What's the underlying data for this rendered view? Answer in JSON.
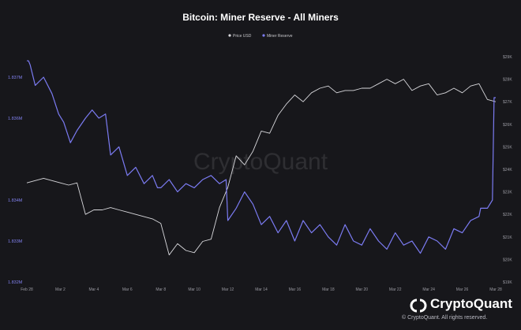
{
  "chart_data": {
    "type": "line",
    "title": "Bitcoin: Miner Reserve - All Miners",
    "legend": {
      "placement": "top-center",
      "entries": [
        "Price USD",
        "Miner Reserve"
      ]
    },
    "watermark": "CryptoQuant",
    "grid": false,
    "x_ticks": [
      "Feb 28",
      "Mar 2",
      "Mar 4",
      "Mar 6",
      "Mar 8",
      "Mar 10",
      "Mar 12",
      "Mar 14",
      "Mar 16",
      "Mar 18",
      "Mar 20",
      "Mar 22",
      "Mar 24",
      "Mar 26",
      "Mar 28"
    ],
    "left_axis": {
      "ticks": [
        "1.832M",
        "1.833M",
        "1.834M",
        "1.836M",
        "1.837M"
      ],
      "ylim": [
        1832000,
        1837500
      ]
    },
    "right_axis": {
      "ticks": [
        "$19K",
        "$20K",
        "$21K",
        "$22K",
        "$23K",
        "$24K",
        "$25K",
        "$26K",
        "$27K",
        "$28K",
        "$29K"
      ],
      "ylim": [
        19000,
        29000
      ]
    },
    "series": [
      {
        "name": "Price USD",
        "axis": "right",
        "color": "#d8d8dc",
        "x": [
          0,
          0.5,
          1,
          1.5,
          2,
          2.5,
          3,
          3.5,
          4,
          4.5,
          5,
          5.5,
          6,
          6.5,
          7,
          7.5,
          8,
          8.5,
          9,
          9.5,
          10,
          10.5,
          11,
          11.5,
          12,
          12.5,
          13,
          13.5,
          14,
          14.5,
          15,
          15.5,
          16,
          16.5,
          17,
          17.5,
          18,
          18.5,
          19,
          19.5,
          20,
          20.5,
          21,
          21.5,
          22,
          22.5,
          23,
          23.5,
          24,
          24.5,
          25,
          25.5,
          26,
          26.5,
          27,
          27.5,
          28
        ],
        "y": [
          23.4,
          23.5,
          23.6,
          23.5,
          23.4,
          23.3,
          23.4,
          22.0,
          22.2,
          22.2,
          22.3,
          22.2,
          22.1,
          22.0,
          21.9,
          21.8,
          21.6,
          20.2,
          20.7,
          20.4,
          20.3,
          20.8,
          20.9,
          22.3,
          23.2,
          24.6,
          24.2,
          24.8,
          25.7,
          25.6,
          26.4,
          26.9,
          27.3,
          27.0,
          27.4,
          27.6,
          27.7,
          27.4,
          27.5,
          27.5,
          27.6,
          27.6,
          27.8,
          28.0,
          27.8,
          28.0,
          27.5,
          27.7,
          27.8,
          27.3,
          27.4,
          27.6,
          27.4,
          27.7,
          27.8,
          27.1,
          27.0
        ]
      },
      {
        "name": "Miner Reserve",
        "axis": "left",
        "color": "#7b7bf2",
        "x": [
          0,
          0.1,
          0.2,
          0.5,
          1,
          1.5,
          1.9,
          2.2,
          2.6,
          3,
          3.5,
          3.9,
          4.3,
          4.7,
          5,
          5.5,
          6,
          6.5,
          7,
          7.5,
          7.8,
          8,
          8.5,
          9,
          9.5,
          10,
          10.5,
          11,
          11.5,
          11.9,
          12,
          12.5,
          13,
          13.5,
          14,
          14.5,
          15,
          15.5,
          16,
          16.5,
          17,
          17.5,
          18,
          18.5,
          19,
          19.5,
          20,
          20.5,
          21,
          21.5,
          22,
          22.5,
          23,
          23.5,
          24,
          24.5,
          25,
          25.5,
          26,
          26.5,
          27,
          27.1,
          27.5,
          27.8,
          27.9,
          28
        ],
        "y": [
          1837.4,
          1837.4,
          1837.3,
          1836.8,
          1837.0,
          1836.6,
          1836.1,
          1835.9,
          1835.4,
          1835.7,
          1836.0,
          1836.2,
          1836.0,
          1836.1,
          1835.1,
          1835.3,
          1834.6,
          1834.8,
          1834.4,
          1834.6,
          1834.3,
          1834.3,
          1834.5,
          1834.2,
          1834.4,
          1834.3,
          1834.5,
          1834.6,
          1834.4,
          1834.5,
          1833.5,
          1833.8,
          1834.2,
          1833.9,
          1833.4,
          1833.6,
          1833.2,
          1833.5,
          1833.0,
          1833.5,
          1833.2,
          1833.4,
          1833.1,
          1832.9,
          1833.4,
          1833.0,
          1832.9,
          1833.3,
          1833.0,
          1832.8,
          1833.2,
          1832.9,
          1833.0,
          1832.7,
          1833.1,
          1833.0,
          1832.8,
          1833.3,
          1833.2,
          1833.5,
          1833.6,
          1833.8,
          1833.8,
          1834.0,
          1836.5,
          1836.5
        ]
      }
    ]
  },
  "brand": {
    "name": "CryptoQuant",
    "copyright": "© CryptoQuant. All rights reserved."
  }
}
